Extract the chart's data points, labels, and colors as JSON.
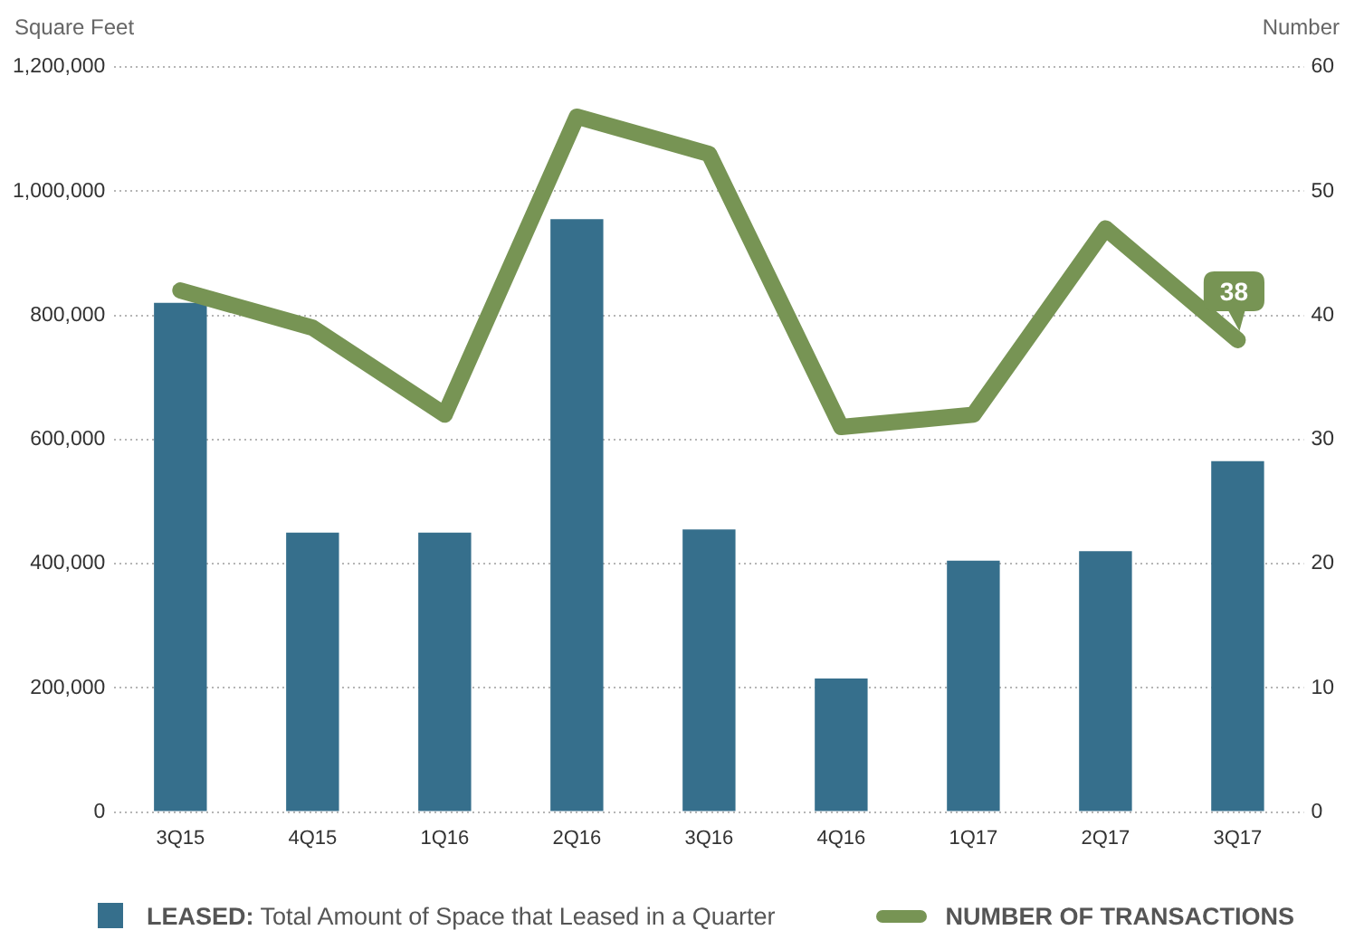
{
  "chart_data": {
    "type": "bar",
    "ylabel": "Square Feet",
    "y2label": "Number",
    "categories": [
      "3Q15",
      "4Q15",
      "1Q16",
      "2Q16",
      "3Q16",
      "4Q16",
      "1Q17",
      "2Q17",
      "3Q17"
    ],
    "series": [
      {
        "name": "LEASED: Total Amount of Space that Leased in a Quarter",
        "color": "#366f8c",
        "values": [
          820000,
          450000,
          450000,
          955000,
          455000,
          215000,
          405000,
          420000,
          565000
        ]
      },
      {
        "name": "NUMBER OF TRANSACTIONS",
        "type": "line",
        "axis": "y2",
        "color": "#779454",
        "values": [
          42,
          39,
          32,
          56,
          53,
          31,
          32,
          47,
          38
        ],
        "value_labels": [
          null,
          null,
          null,
          null,
          null,
          null,
          null,
          null,
          "38"
        ]
      }
    ],
    "ylim": [
      0,
      1200000
    ],
    "yticks": [
      0,
      {
        "value": 200000,
        "label": "200,000"
      },
      {
        "value": 400000,
        "label": "400,000"
      },
      {
        "value": 600000,
        "label": "600,000"
      },
      {
        "value": 800000,
        "label": "800,000"
      },
      {
        "value": 1000000,
        "label": "1,000,000"
      },
      {
        "value": 1200000,
        "label": "1,200,000"
      }
    ],
    "y2lim": [
      0,
      60
    ],
    "y2ticks": [
      0,
      10,
      20,
      30,
      40,
      50,
      60
    ],
    "grid": "y",
    "legend": "bottom",
    "marker": "none"
  }
}
